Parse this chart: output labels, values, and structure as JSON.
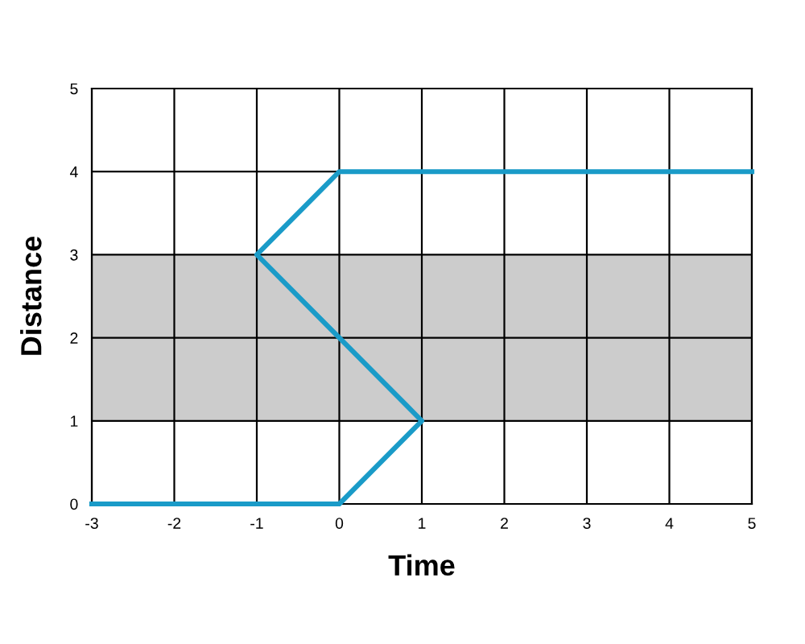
{
  "chart_data": {
    "type": "line",
    "xlabel": "Time",
    "ylabel": "Distance",
    "series": [
      {
        "color": "#1a9bc8",
        "x": [
          -3,
          0,
          1,
          -1,
          0,
          5
        ],
        "values": [
          0,
          0,
          1,
          3,
          4,
          4
        ]
      }
    ],
    "xlim": [
      -3,
      5
    ],
    "ylim": [
      0,
      5
    ],
    "xticks": [
      -3,
      -2,
      -1,
      0,
      1,
      2,
      3,
      4,
      5
    ],
    "yticks": [
      0,
      1,
      2,
      3,
      4,
      5
    ],
    "grid": true,
    "marker": "none",
    "line_style": "solid",
    "bands": [
      {
        "axis": "y",
        "from": 1,
        "to": 3,
        "color": "#cccccc"
      }
    ]
  }
}
